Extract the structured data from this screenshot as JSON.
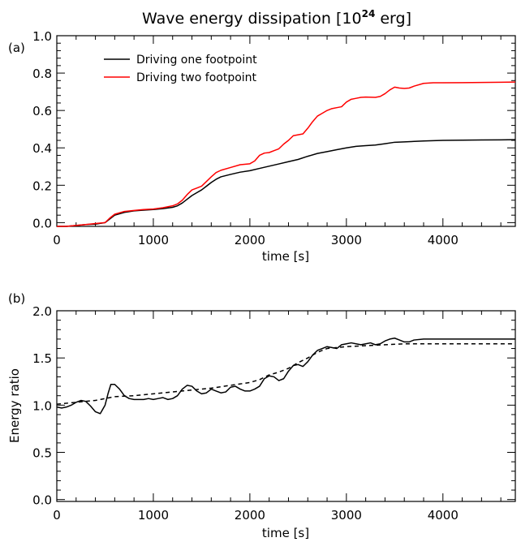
{
  "chart_data": [
    {
      "type": "line",
      "panel_label": "(a)",
      "title": "Wave energy dissipation [10",
      "title_exponent": "24",
      "title_suffix": " erg]",
      "xlabel": "time [s]",
      "ylabel": "",
      "xlim": [
        0,
        4750
      ],
      "ylim": [
        -0.02,
        1.0
      ],
      "xticks": [
        0,
        1000,
        2000,
        3000,
        4000
      ],
      "yticks": [
        0.0,
        0.2,
        0.4,
        0.6,
        0.8,
        1.0
      ],
      "xtick_labels": [
        "0",
        "1000",
        "2000",
        "3000",
        "4000"
      ],
      "ytick_labels": [
        "0.0",
        "0.2",
        "0.4",
        "0.6",
        "0.8",
        "1.0"
      ],
      "legend_position": "top-left",
      "series": [
        {
          "name": "Driving one footpoint",
          "color": "#000000",
          "dash": "solid",
          "x": [
            0,
            100,
            200,
            300,
            400,
            500,
            550,
            600,
            700,
            800,
            900,
            1000,
            1100,
            1200,
            1250,
            1300,
            1350,
            1400,
            1450,
            1500,
            1550,
            1600,
            1650,
            1700,
            1800,
            1900,
            2000,
            2100,
            2200,
            2300,
            2400,
            2500,
            2600,
            2700,
            2800,
            2900,
            3000,
            3100,
            3200,
            3300,
            3400,
            3500,
            3600,
            3800,
            4000,
            4200,
            4400,
            4600,
            4750
          ],
          "y": [
            -0.02,
            -0.02,
            -0.015,
            -0.01,
            -0.008,
            0.0,
            0.02,
            0.04,
            0.055,
            0.063,
            0.067,
            0.07,
            0.075,
            0.082,
            0.09,
            0.105,
            0.125,
            0.145,
            0.16,
            0.175,
            0.195,
            0.215,
            0.232,
            0.245,
            0.258,
            0.27,
            0.278,
            0.29,
            0.302,
            0.314,
            0.326,
            0.338,
            0.355,
            0.37,
            0.38,
            0.39,
            0.4,
            0.408,
            0.412,
            0.415,
            0.422,
            0.43,
            0.432,
            0.437,
            0.44,
            0.441,
            0.442,
            0.443,
            0.444
          ]
        },
        {
          "name": "Driving two footpoint",
          "color": "#ff0000",
          "dash": "solid",
          "x": [
            0,
            100,
            200,
            300,
            400,
            500,
            550,
            600,
            700,
            800,
            900,
            1000,
            1100,
            1200,
            1250,
            1300,
            1350,
            1400,
            1450,
            1500,
            1550,
            1600,
            1650,
            1700,
            1800,
            1900,
            2000,
            2050,
            2100,
            2150,
            2200,
            2250,
            2300,
            2350,
            2400,
            2450,
            2500,
            2550,
            2600,
            2650,
            2700,
            2750,
            2800,
            2850,
            2900,
            2950,
            3000,
            3050,
            3100,
            3150,
            3200,
            3300,
            3350,
            3400,
            3450,
            3500,
            3550,
            3600,
            3650,
            3700,
            3800,
            3900,
            4000,
            4200,
            4400,
            4600,
            4750
          ],
          "y": [
            -0.02,
            -0.02,
            -0.015,
            -0.01,
            -0.005,
            0.0,
            0.025,
            0.045,
            0.06,
            0.065,
            0.07,
            0.073,
            0.08,
            0.09,
            0.1,
            0.12,
            0.15,
            0.175,
            0.185,
            0.195,
            0.22,
            0.245,
            0.268,
            0.28,
            0.295,
            0.31,
            0.315,
            0.33,
            0.36,
            0.372,
            0.375,
            0.385,
            0.395,
            0.42,
            0.44,
            0.465,
            0.47,
            0.475,
            0.505,
            0.54,
            0.57,
            0.585,
            0.6,
            0.61,
            0.615,
            0.62,
            0.645,
            0.66,
            0.665,
            0.67,
            0.672,
            0.67,
            0.675,
            0.69,
            0.71,
            0.725,
            0.72,
            0.718,
            0.72,
            0.73,
            0.745,
            0.748,
            0.748,
            0.749,
            0.75,
            0.751,
            0.752
          ]
        }
      ]
    },
    {
      "type": "line",
      "panel_label": "(b)",
      "title": "",
      "xlabel": "time [s]",
      "ylabel": "Energy ratio",
      "xlim": [
        0,
        4750
      ],
      "ylim": [
        -0.02,
        2.0
      ],
      "xticks": [
        0,
        1000,
        2000,
        3000,
        4000
      ],
      "yticks": [
        0.0,
        0.5,
        1.0,
        1.5,
        2.0
      ],
      "xtick_labels": [
        "0",
        "1000",
        "2000",
        "3000",
        "4000"
      ],
      "ytick_labels": [
        "0.0",
        "0.5",
        "1.0",
        "1.5",
        "2.0"
      ],
      "series": [
        {
          "name": "",
          "color": "#000000",
          "dash": "solid",
          "x": [
            0,
            50,
            100,
            150,
            200,
            250,
            300,
            350,
            400,
            450,
            500,
            530,
            560,
            600,
            650,
            700,
            750,
            800,
            850,
            900,
            950,
            1000,
            1050,
            1100,
            1150,
            1200,
            1250,
            1300,
            1350,
            1400,
            1450,
            1500,
            1550,
            1600,
            1650,
            1700,
            1750,
            1800,
            1850,
            1900,
            1950,
            2000,
            2050,
            2100,
            2150,
            2200,
            2250,
            2300,
            2350,
            2400,
            2450,
            2500,
            2550,
            2600,
            2650,
            2700,
            2750,
            2800,
            2850,
            2900,
            2950,
            3000,
            3050,
            3100,
            3150,
            3200,
            3250,
            3300,
            3350,
            3400,
            3450,
            3500,
            3550,
            3600,
            3650,
            3700,
            3800,
            4000,
            4200,
            4400,
            4600,
            4750
          ],
          "y": [
            0.98,
            0.97,
            0.98,
            1.0,
            1.03,
            1.05,
            1.04,
            0.99,
            0.93,
            0.91,
            1.0,
            1.12,
            1.22,
            1.22,
            1.17,
            1.1,
            1.07,
            1.06,
            1.06,
            1.06,
            1.07,
            1.06,
            1.07,
            1.08,
            1.06,
            1.07,
            1.1,
            1.17,
            1.21,
            1.2,
            1.15,
            1.12,
            1.13,
            1.17,
            1.15,
            1.13,
            1.14,
            1.19,
            1.2,
            1.17,
            1.15,
            1.15,
            1.17,
            1.2,
            1.28,
            1.31,
            1.3,
            1.26,
            1.28,
            1.36,
            1.42,
            1.43,
            1.41,
            1.46,
            1.53,
            1.58,
            1.6,
            1.62,
            1.61,
            1.6,
            1.64,
            1.65,
            1.66,
            1.65,
            1.64,
            1.65,
            1.66,
            1.64,
            1.65,
            1.68,
            1.7,
            1.71,
            1.69,
            1.67,
            1.67,
            1.69,
            1.7,
            1.7,
            1.7,
            1.7,
            1.7,
            1.7
          ]
        },
        {
          "name": "",
          "color": "#000000",
          "dash": "dashed",
          "x": [
            0,
            200,
            400,
            600,
            800,
            1000,
            1200,
            1400,
            1600,
            1800,
            2000,
            2100,
            2200,
            2300,
            2400,
            2500,
            2600,
            2700,
            2800,
            2900,
            3000,
            3200,
            3400,
            3600,
            3800,
            4000,
            4200,
            4400,
            4600,
            4750
          ],
          "y": [
            1.01,
            1.03,
            1.05,
            1.09,
            1.1,
            1.12,
            1.14,
            1.16,
            1.18,
            1.21,
            1.24,
            1.27,
            1.32,
            1.35,
            1.39,
            1.45,
            1.5,
            1.56,
            1.6,
            1.61,
            1.62,
            1.63,
            1.64,
            1.65,
            1.65,
            1.65,
            1.65,
            1.65,
            1.65,
            1.65
          ]
        }
      ]
    }
  ]
}
